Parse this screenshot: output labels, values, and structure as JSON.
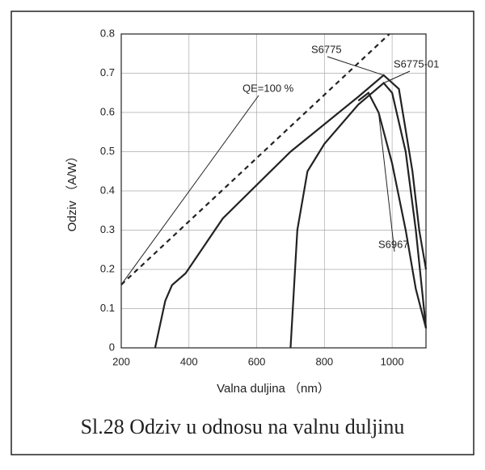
{
  "chart_data": {
    "type": "line",
    "title": "Sl.28 Odziv u odnosu na valnu duljinu",
    "xlabel": "Valna duljina （nm）",
    "ylabel": "Odziv （A/W）",
    "xlim": [
      200,
      1100
    ],
    "xticks": [
      200,
      400,
      600,
      800,
      1000
    ],
    "ylim": [
      0,
      0.8
    ],
    "yticks": [
      0,
      0.1,
      0.2,
      0.3,
      0.4,
      0.5,
      0.6,
      0.7,
      0.8
    ],
    "grid": true,
    "series": [
      {
        "name": "QE=100 %",
        "color": "#222222",
        "dashed": true,
        "x": [
          200,
          992
        ],
        "values": [
          0.161,
          0.8
        ]
      },
      {
        "name": "S6775",
        "color": "#222222",
        "x": [
          300,
          330,
          350,
          390,
          500,
          700,
          900,
          975,
          1020,
          1060,
          1080,
          1100
        ],
        "values": [
          0,
          0.12,
          0.16,
          0.19,
          0.33,
          0.5,
          0.64,
          0.695,
          0.66,
          0.45,
          0.3,
          0.2
        ]
      },
      {
        "name": "S6775-01",
        "color": "#222222",
        "x": [
          700,
          720,
          750,
          800,
          900,
          975,
          1000,
          1040,
          1070,
          1100
        ],
        "values": [
          0,
          0.3,
          0.45,
          0.52,
          0.62,
          0.675,
          0.65,
          0.5,
          0.3,
          0.05
        ]
      },
      {
        "name": "S6967",
        "color": "#222222",
        "x": [
          900,
          930,
          960,
          1000,
          1040,
          1070,
          1100
        ],
        "values": [
          0.63,
          0.65,
          0.6,
          0.47,
          0.3,
          0.15,
          0.05
        ]
      }
    ]
  }
}
